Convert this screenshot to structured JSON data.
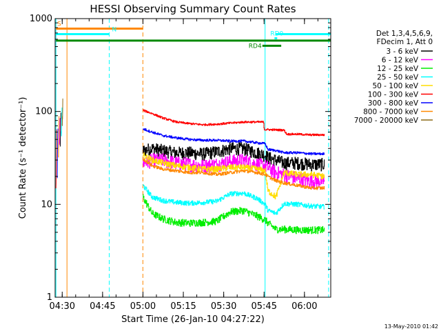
{
  "chart_data": {
    "type": "line",
    "title": "HESSI Observing Summary Count Rates",
    "xlabel": "Start Time (26-Jan-10 04:27:22)",
    "ylabel": "Count Rate (s⁻¹ detector⁻¹)",
    "x_unit": "minutes after 04:27:22 UT",
    "xlim": [
      0,
      102.4
    ],
    "ylim": [
      1,
      1000
    ],
    "y_scale": "log",
    "x_ticks": [
      {
        "label": "04:30",
        "t": 2.63
      },
      {
        "label": "04:45",
        "t": 17.63
      },
      {
        "label": "05:00",
        "t": 32.63
      },
      {
        "label": "05:15",
        "t": 47.63
      },
      {
        "label": "05:30",
        "t": 62.63
      },
      {
        "label": "05:45",
        "t": 77.63
      },
      {
        "label": "06:00",
        "t": 92.63
      }
    ],
    "y_ticks": [
      {
        "label": "1",
        "v": 1
      },
      {
        "label": "10",
        "v": 10
      },
      {
        "label": "100",
        "v": 100
      },
      {
        "label": "1000",
        "v": 1000
      }
    ],
    "legend_title": [
      "Det 1,3,4,5,6,9,",
      "FDecim 1, Att 0"
    ],
    "legend_position": "right",
    "series": [
      {
        "name": "3 - 6 keV",
        "color": "#000000",
        "x": [
          32.6,
          36,
          40,
          45,
          50,
          55,
          60,
          65,
          70,
          75,
          78,
          79,
          82,
          85,
          90,
          95,
          100
        ],
        "y": [
          38,
          40,
          38,
          36,
          36,
          35,
          37,
          40,
          40,
          36,
          34,
          32,
          30,
          28,
          28,
          27,
          27
        ]
      },
      {
        "name": "6 - 12 keV",
        "color": "#ff00ff",
        "x": [
          32.6,
          36,
          40,
          45,
          50,
          55,
          60,
          65,
          70,
          75,
          78,
          79,
          82,
          85,
          90,
          95,
          100
        ],
        "y": [
          28,
          30,
          30,
          28,
          27,
          26,
          27,
          29,
          30,
          27,
          26,
          25,
          22,
          21,
          19,
          18,
          18
        ]
      },
      {
        "name": "12 - 25 keV",
        "color": "#00ee00",
        "x": [
          32.6,
          36,
          40,
          45,
          50,
          55,
          60,
          65,
          70,
          75,
          78,
          79,
          82,
          85,
          90,
          95,
          100
        ],
        "y": [
          12,
          8,
          7,
          6.4,
          6.3,
          6.4,
          6.6,
          8.3,
          8.6,
          7.5,
          6.8,
          6.3,
          5.4,
          5.4,
          5.3,
          5.3,
          5.3
        ]
      },
      {
        "name": "25 - 50 keV",
        "color": "#00ffff",
        "x": [
          32.6,
          36,
          40,
          45,
          50,
          55,
          60,
          65,
          70,
          75,
          78,
          79,
          82,
          85,
          90,
          95,
          100
        ],
        "y": [
          16,
          12,
          11,
          10.5,
          10.3,
          10.5,
          10.8,
          13,
          13.2,
          11.6,
          10,
          8.6,
          8,
          10.2,
          10,
          9.6,
          9.4
        ]
      },
      {
        "name": "50 - 100 keV",
        "color": "#ffdd00",
        "x": [
          32.6,
          36,
          40,
          45,
          50,
          55,
          60,
          65,
          70,
          75,
          78,
          79,
          82,
          85,
          90,
          95,
          100
        ],
        "y": [
          34,
          30,
          28,
          26,
          25,
          24,
          24,
          25,
          25,
          24,
          23,
          14,
          12,
          22,
          21,
          21,
          20
        ]
      },
      {
        "name": "100 - 300 keV",
        "color": "#ff0000",
        "x": [
          32.6,
          36,
          40,
          45,
          50,
          55,
          60,
          65,
          70,
          75,
          77.5,
          77.6,
          85,
          86,
          90,
          95,
          100
        ],
        "y": [
          103,
          95,
          85,
          77,
          74,
          72,
          73,
          75,
          77,
          77,
          77,
          64,
          63,
          57,
          57,
          56,
          56
        ]
      },
      {
        "name": "300 - 800 keV",
        "color": "#0000ff",
        "x": [
          32.6,
          36,
          40,
          45,
          50,
          55,
          60,
          65,
          70,
          75,
          78,
          79,
          82,
          85,
          90,
          95,
          100
        ],
        "y": [
          65,
          60,
          55,
          52,
          50,
          49,
          49,
          48,
          48,
          46,
          45,
          39,
          38,
          36,
          36,
          35,
          35
        ]
      },
      {
        "name": "800 - 7000 keV",
        "color": "#ff8800",
        "x": [
          32.6,
          36,
          40,
          45,
          50,
          55,
          60,
          65,
          70,
          75,
          78,
          79,
          82,
          85,
          90,
          95,
          100
        ],
        "y": [
          31,
          26,
          24,
          23,
          22,
          22,
          21,
          22,
          23,
          22,
          21,
          20,
          18,
          17,
          16,
          15,
          15
        ]
      },
      {
        "name": "7000 - 20000 keV",
        "color": "#8b6914",
        "x": [],
        "y": []
      }
    ],
    "early_segment": {
      "x": [
        0.3,
        0.8,
        1.2,
        1.6,
        1.9,
        2.3,
        2.6
      ],
      "colors": [
        "#ff0000",
        "#0000ff",
        "#ff8800",
        "#ff00ff",
        "#000000",
        "#00ffff",
        "#8b6914"
      ]
    },
    "vlines": [
      {
        "t": 0.3,
        "color": "#00ffff",
        "dashed": false
      },
      {
        "t": 4.4,
        "color": "#ff8800",
        "dashed": false
      },
      {
        "t": 20.1,
        "color": "#00ffff",
        "dashed": true
      },
      {
        "t": 32.6,
        "color": "#ff8800",
        "dashed": true
      },
      {
        "t": 78.0,
        "color": "#00ffff",
        "dashed": false
      },
      {
        "t": 101.6,
        "color": "#00ffff",
        "dashed": true
      }
    ],
    "flag_bars": [
      {
        "label": "S",
        "color": "#ff8800",
        "t0": 0.3,
        "t1": 32.6,
        "v": 780
      },
      {
        "label": "N",
        "color": "#00ffff",
        "t0": 0.3,
        "t1": 20.1,
        "v": 680
      },
      {
        "label": "",
        "color": "#00ffff",
        "t0": 82.0,
        "t1": 102.4,
        "v": 680
      },
      {
        "label": "",
        "color": "#008800",
        "t0": 0.3,
        "t1": 102.4,
        "v": 580
      },
      {
        "label": "RD0",
        "color": "#00ffff",
        "t0": 81.5,
        "t1": 82.5,
        "v": 615
      },
      {
        "label": "RD4",
        "color": "#008800",
        "t0": 77.0,
        "t1": 84.0,
        "v": 510
      }
    ]
  },
  "footer": {
    "timestamp": "13-May-2010 01:42"
  }
}
